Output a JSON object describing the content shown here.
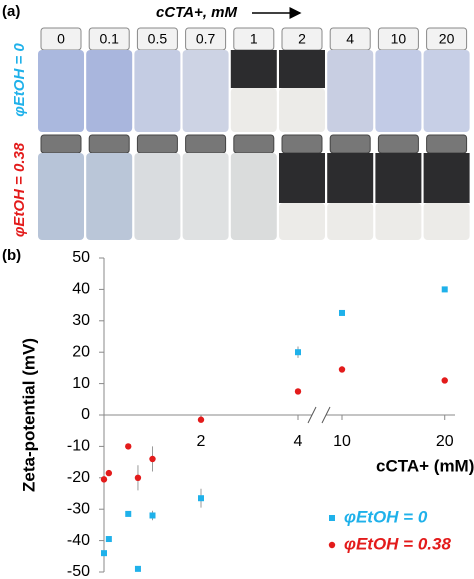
{
  "panel_a": {
    "label": "(a)",
    "concentration_label": "cCTA+, mM",
    "concentrations": [
      "0",
      "0.1",
      "0.5",
      "0.7",
      "1",
      "2",
      "4",
      "10",
      "20"
    ],
    "row_labels": [
      "φEtOH = 0",
      "φEtOH = 0.38"
    ]
  },
  "panel_b_label": "(b)",
  "chart_data": {
    "type": "scatter",
    "ylabel": "Zeta-potential (mV)",
    "xlabel": "cCTA+ (mM)",
    "x": [
      0,
      0.1,
      0.5,
      0.7,
      1,
      2,
      4,
      10,
      20
    ],
    "xlim": [
      0,
      21
    ],
    "xbreak": [
      4,
      10
    ],
    "xticks": [
      2,
      4,
      10,
      20
    ],
    "ylim": [
      -50,
      50
    ],
    "yticks": [
      -50,
      -40,
      -30,
      -20,
      -10,
      0,
      10,
      20,
      30,
      40,
      50
    ],
    "legend": "lower right",
    "series": [
      {
        "name": "φEtOH = 0",
        "color": "#1fb1ea",
        "marker": "square",
        "values": [
          -44,
          -39.5,
          -31.5,
          -49,
          -32,
          -26.5,
          20,
          32.5,
          40
        ],
        "errors": [
          null,
          null,
          null,
          null,
          1.5,
          3,
          1.8,
          null,
          null
        ]
      },
      {
        "name": "φEtOH = 0.38",
        "color": "#e31b1b",
        "marker": "circle",
        "values": [
          -20.5,
          -18.5,
          -10,
          -20,
          -14,
          -1.5,
          7.5,
          14.5,
          11
        ],
        "errors": [
          null,
          null,
          null,
          4,
          4,
          null,
          null,
          1,
          null
        ]
      }
    ]
  }
}
